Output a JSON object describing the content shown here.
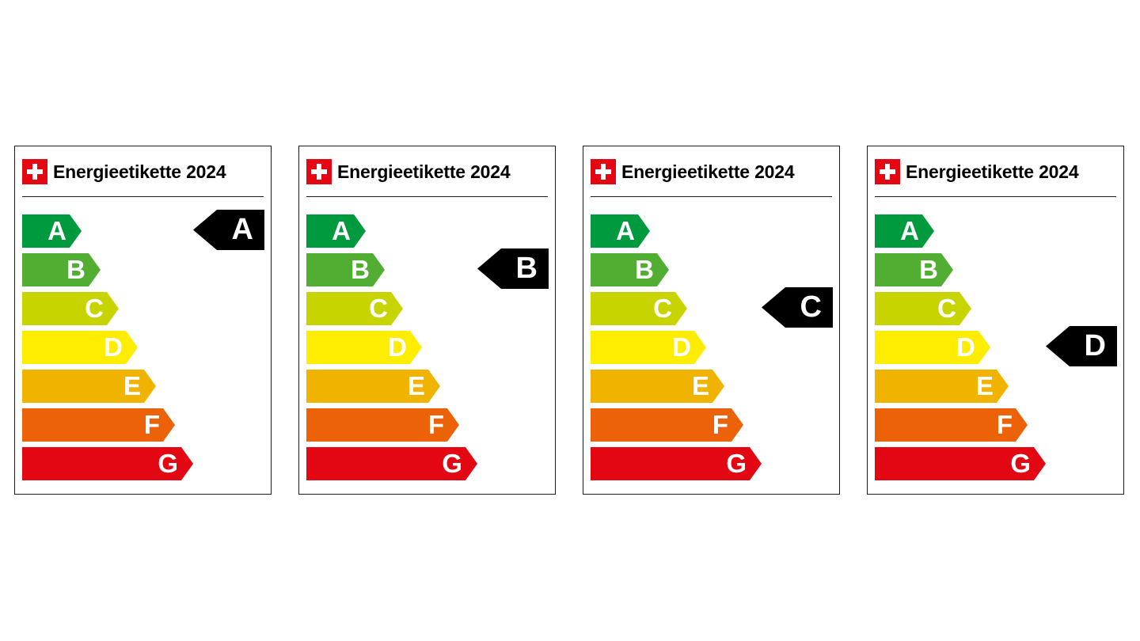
{
  "labels": [
    {
      "title": "Energieetikette 2024",
      "rating": "A",
      "rating_index": 0
    },
    {
      "title": "Energieetikette 2024",
      "rating": "B",
      "rating_index": 1
    },
    {
      "title": "Energieetikette 2024",
      "rating": "C",
      "rating_index": 2
    },
    {
      "title": "Energieetikette 2024",
      "rating": "D",
      "rating_index": 3
    }
  ],
  "classes": [
    {
      "letter": "A",
      "color": "#009a3e"
    },
    {
      "letter": "B",
      "color": "#52ae32"
    },
    {
      "letter": "C",
      "color": "#c8d400"
    },
    {
      "letter": "D",
      "color": "#ffed00"
    },
    {
      "letter": "E",
      "color": "#f0b400"
    },
    {
      "letter": "F",
      "color": "#eb6209"
    },
    {
      "letter": "G",
      "color": "#e30613"
    }
  ],
  "flag_icon": "swiss-flag-icon"
}
